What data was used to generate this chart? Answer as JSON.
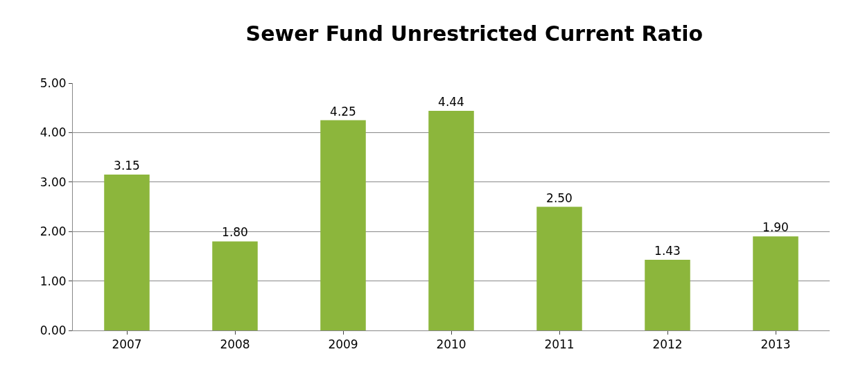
{
  "chart_data": {
    "type": "bar",
    "title": "Sewer Fund Unrestricted Current Ratio",
    "categories": [
      "2007",
      "2008",
      "2009",
      "2010",
      "2011",
      "2012",
      "2013"
    ],
    "values": [
      3.15,
      1.8,
      4.25,
      4.44,
      2.5,
      1.43,
      1.9
    ],
    "value_labels": [
      "3.15",
      "1.80",
      "4.25",
      "4.44",
      "2.50",
      "1.43",
      "1.90"
    ],
    "color": "#8cb63c",
    "ylim": [
      0,
      5
    ],
    "yticks": [
      {
        "value": 0,
        "label": "0.00"
      },
      {
        "value": 1,
        "label": "1.00"
      },
      {
        "value": 2,
        "label": "2.00"
      },
      {
        "value": 3,
        "label": "3.00"
      },
      {
        "value": 4,
        "label": "4.00"
      },
      {
        "value": 5,
        "label": "5.00"
      }
    ],
    "grid": "y",
    "legend": false
  }
}
